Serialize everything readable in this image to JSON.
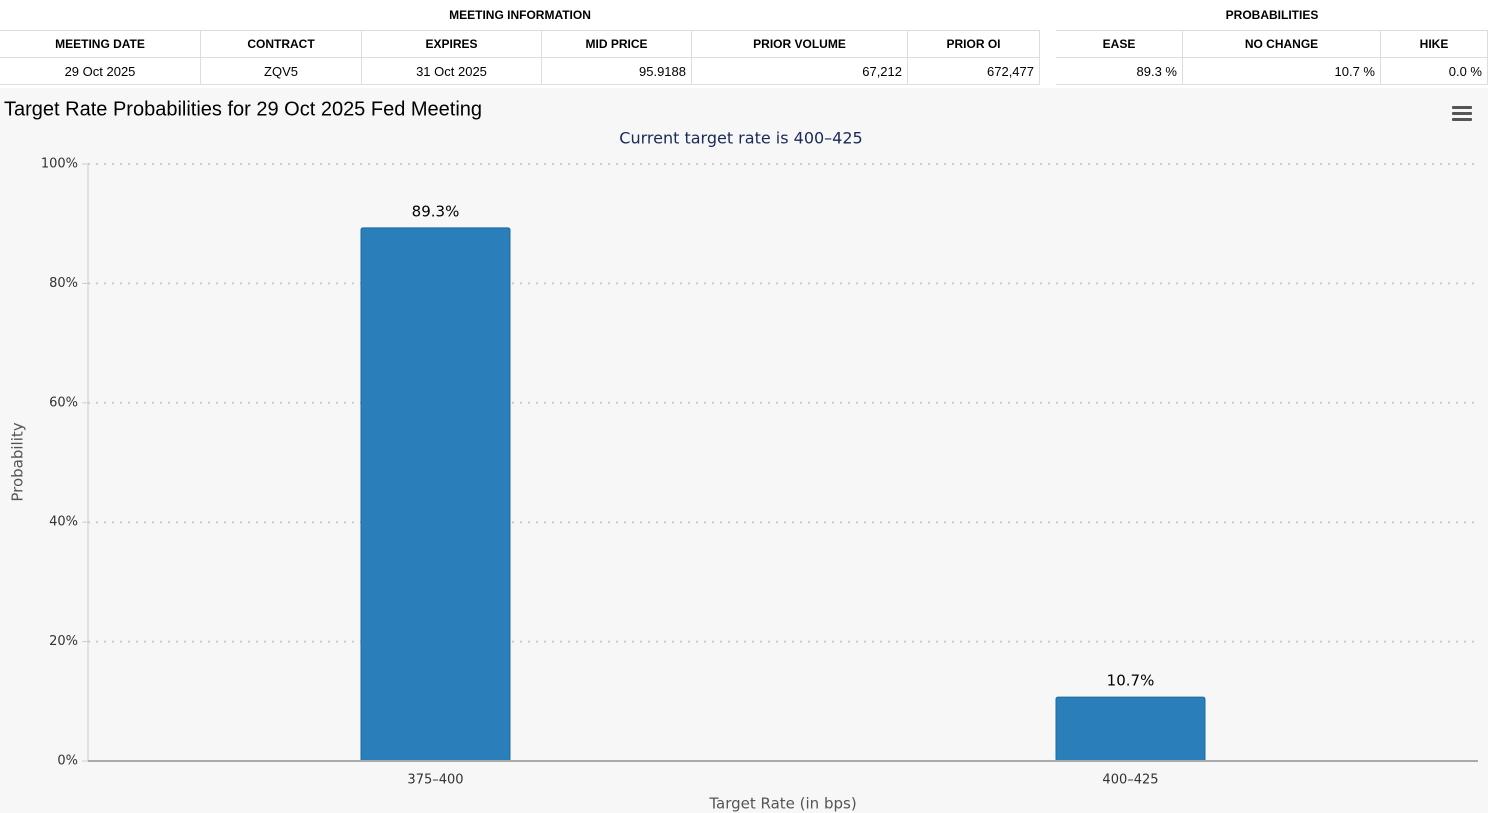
{
  "meeting_information": {
    "title": "MEETING INFORMATION",
    "headers": [
      "MEETING DATE",
      "CONTRACT",
      "EXPIRES",
      "MID PRICE",
      "PRIOR VOLUME",
      "PRIOR OI"
    ],
    "rows": [
      [
        "29 Oct 2025",
        "ZQV5",
        "31 Oct 2025",
        "95.9188",
        "67,212",
        "672,477"
      ]
    ]
  },
  "probabilities": {
    "title": "PROBABILITIES",
    "headers": [
      "EASE",
      "NO CHANGE",
      "HIKE"
    ],
    "rows": [
      [
        "89.3 %",
        "10.7 %",
        "0.0 %"
      ]
    ]
  },
  "chart_data": {
    "type": "bar",
    "title": "Target Rate Probabilities for 29 Oct 2025 Fed Meeting",
    "subtitle": "Current target rate is 400–425",
    "x_label": "Target Rate (in bps)",
    "y_label": "Probability",
    "categories": [
      "375–400",
      "400–425"
    ],
    "values": [
      89.3,
      10.7
    ],
    "value_labels": [
      "89.3%",
      "10.7%"
    ],
    "color": "#2a7fba",
    "ylim": [
      0,
      100
    ],
    "yticks": [
      {
        "value": 0,
        "label": "0%"
      },
      {
        "value": 20,
        "label": "20%"
      },
      {
        "value": 40,
        "label": "40%"
      },
      {
        "value": 60,
        "label": "60%"
      },
      {
        "value": 80,
        "label": "80%"
      },
      {
        "value": 100,
        "label": "100%"
      }
    ],
    "grid": true
  }
}
